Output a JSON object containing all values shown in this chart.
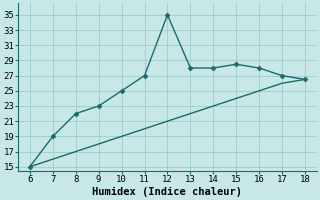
{
  "x": [
    6,
    7,
    8,
    9,
    10,
    11,
    12,
    13,
    14,
    15,
    16,
    17,
    18
  ],
  "y_upper": [
    15,
    19,
    22,
    23,
    25,
    27,
    35,
    28,
    28,
    28.5,
    28,
    27,
    26.5
  ],
  "y_lower": [
    15,
    16,
    17,
    18,
    19,
    20,
    21,
    22,
    23,
    24,
    25,
    26,
    26.5
  ],
  "line_color": "#1a6b6b",
  "bg_color": "#c8e8e8",
  "grid_color": "#a0cccc",
  "xlabel": "Humidex (Indice chaleur)",
  "yticks": [
    15,
    17,
    19,
    21,
    23,
    25,
    27,
    29,
    31,
    33,
    35
  ],
  "xlim": [
    5.5,
    18.5
  ],
  "ylim": [
    14.5,
    36.5
  ],
  "xlabel_fontsize": 7.5,
  "tick_fontsize": 6.5,
  "marker_size": 2.5,
  "linewidth": 1.0
}
